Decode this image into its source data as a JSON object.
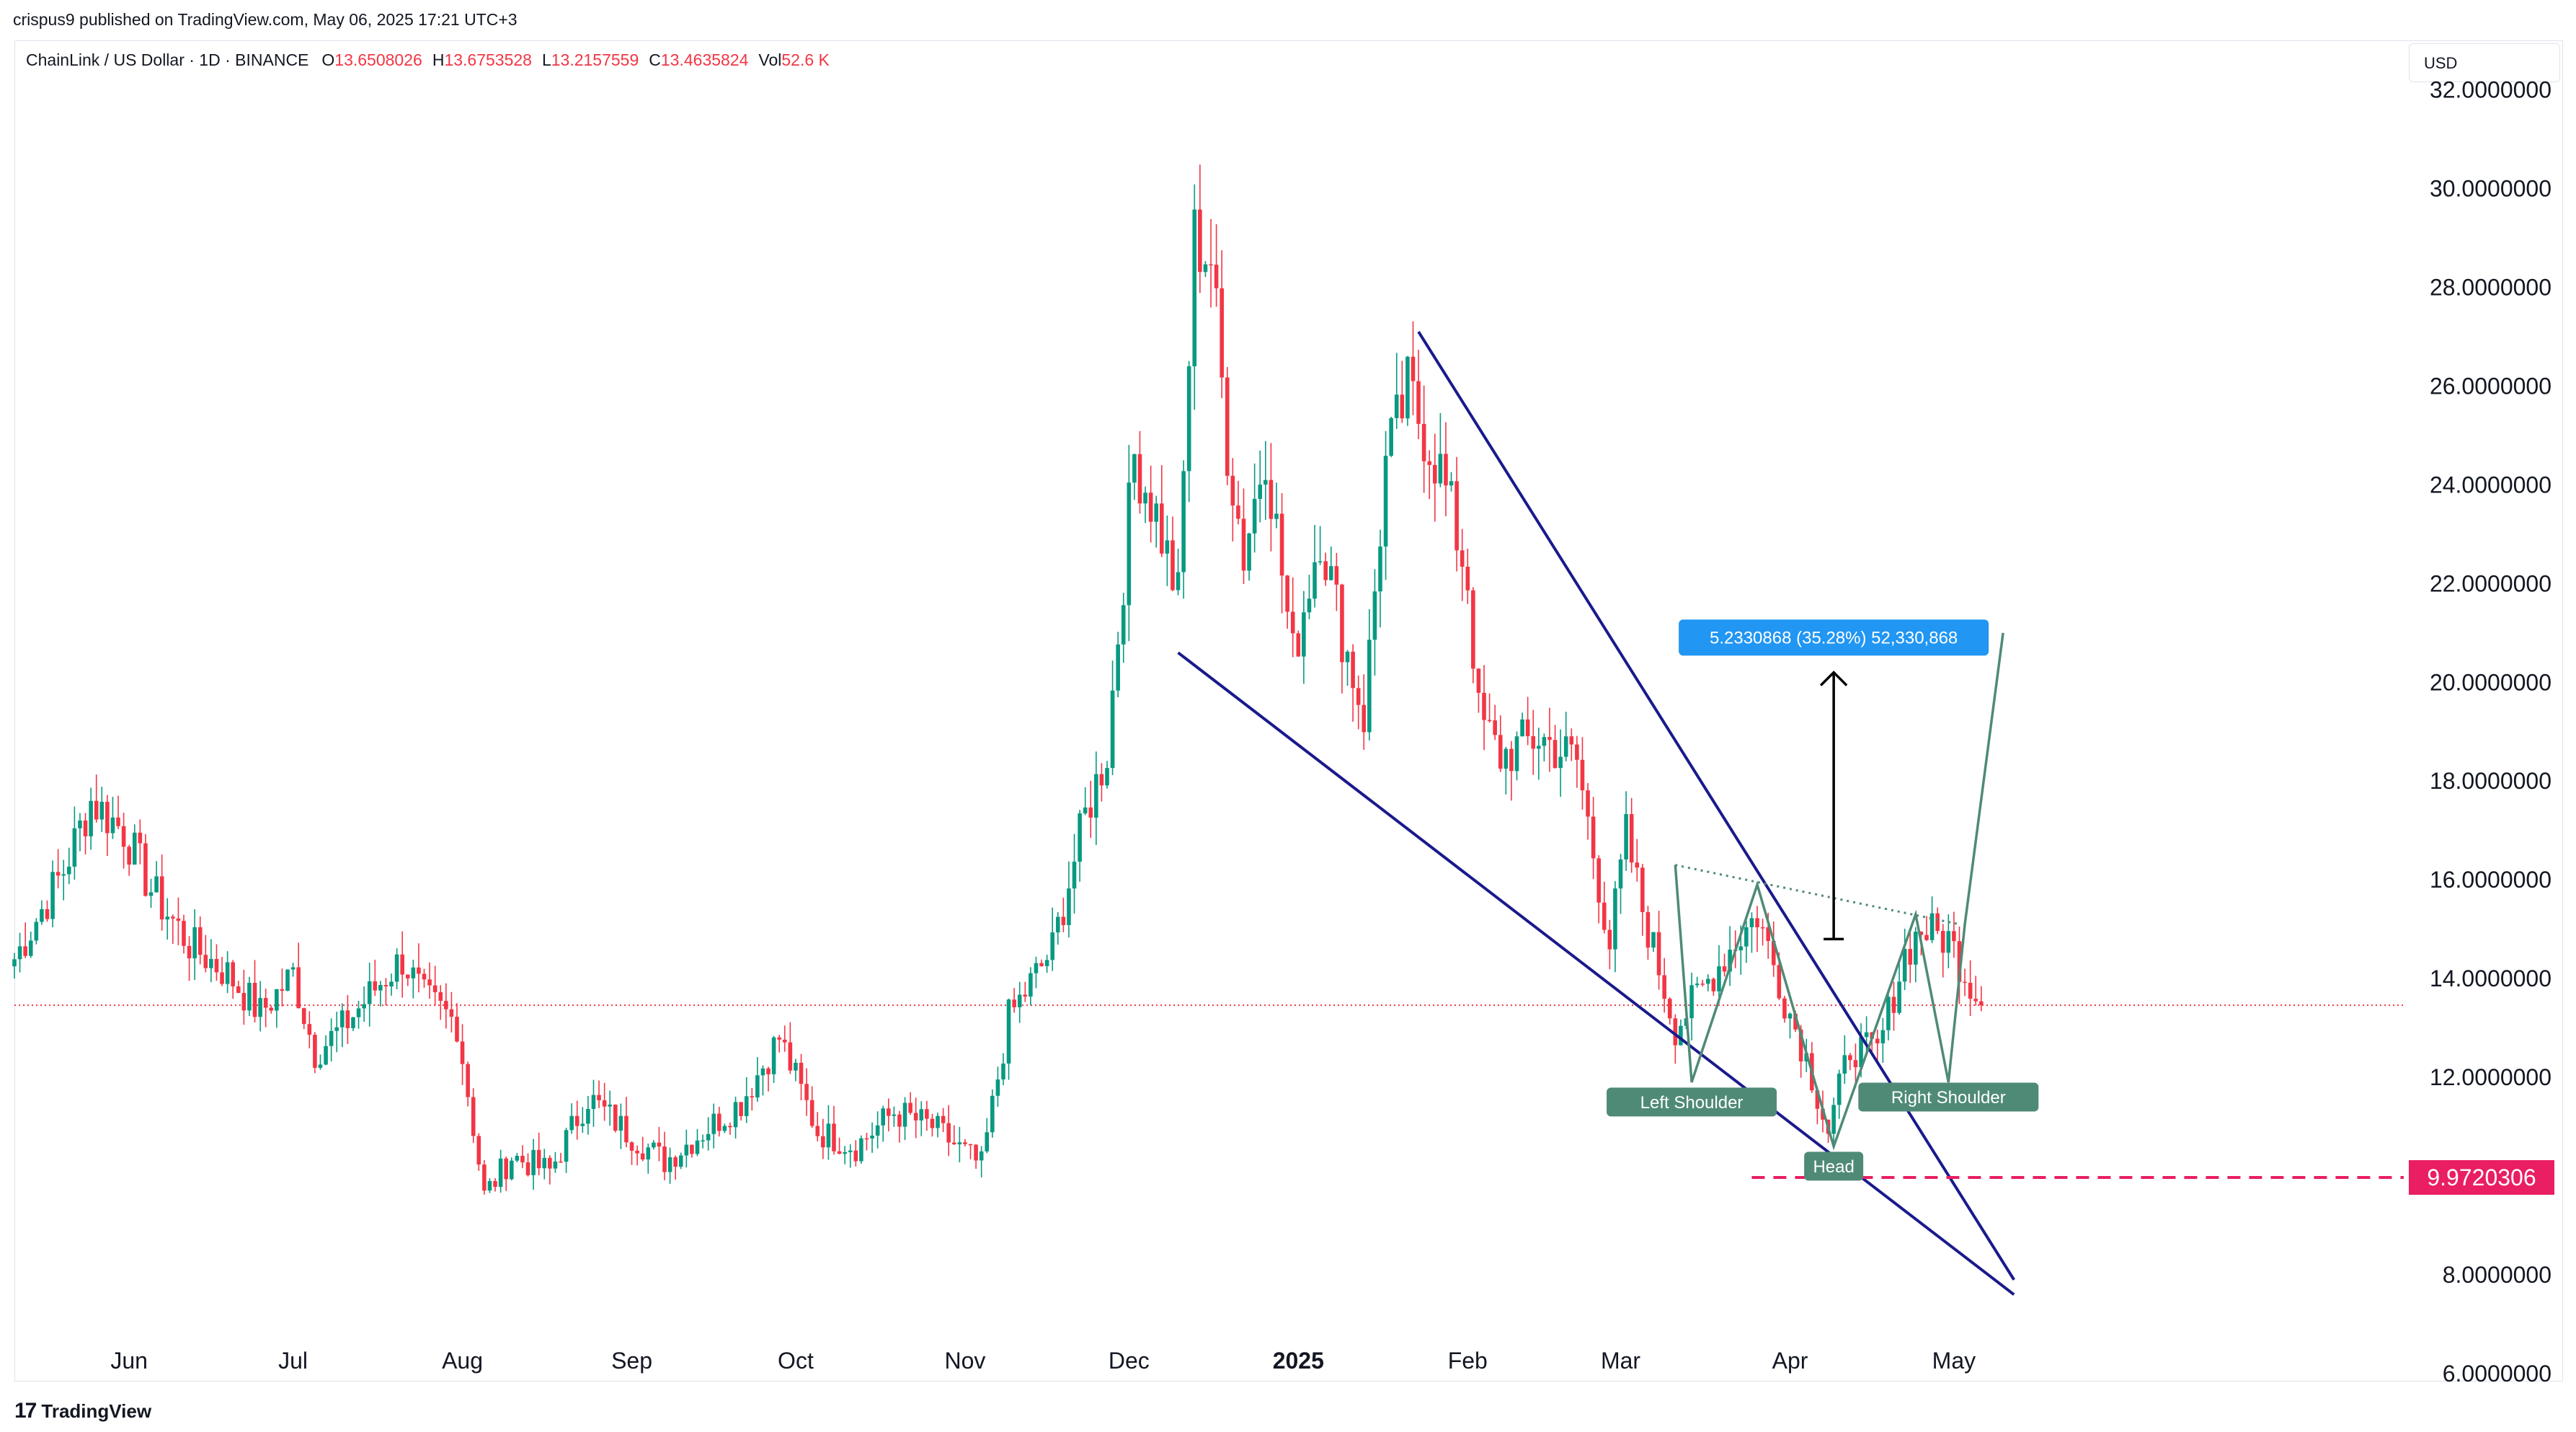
{
  "header": {
    "published_text": "crispus9 published on TradingView.com, May 06, 2025 17:21 UTC+3"
  },
  "legend": {
    "symbol": "ChainLink / US Dollar · 1D · BINANCE",
    "open_label": "O",
    "open": "13.6508026",
    "high_label": "H",
    "high": "13.6753528",
    "low_label": "L",
    "low": "13.2157559",
    "close_label": "C",
    "close": "13.4635824",
    "vol_label": "Vol",
    "vol": "52.6 K"
  },
  "currency_button": "USD",
  "brand": {
    "logo_glyph": "17",
    "name": "TradingView"
  },
  "colors": {
    "up": "#089981",
    "down": "#f23645",
    "wedge": "#1a1a8c",
    "pattern": "#4f8a77",
    "measure_box": "#2196f3",
    "target_line": "#e91e63"
  },
  "chart_data": {
    "type": "candlestick",
    "title": "",
    "xlabel": "",
    "ylabel": "",
    "ylim": [
      6,
      33
    ],
    "yticks": [
      6,
      8,
      12,
      14,
      16,
      18,
      20,
      22,
      24,
      26,
      28,
      30,
      32
    ],
    "ytick_labels": [
      "6.0000000",
      "8.0000000",
      "12.0000000",
      "14.0000000",
      "16.0000000",
      "18.0000000",
      "20.0000000",
      "22.0000000",
      "24.0000000",
      "26.0000000",
      "28.0000000",
      "30.0000000",
      "32.0000000"
    ],
    "xlim": [
      "2025-05-22",
      "2025-05-20"
    ],
    "x_axis_labels": [
      {
        "date": "2024-06-01",
        "label": "Jun",
        "bold": false
      },
      {
        "date": "2024-07-01",
        "label": "Jul",
        "bold": false
      },
      {
        "date": "2024-08-01",
        "label": "Aug",
        "bold": false
      },
      {
        "date": "2024-09-01",
        "label": "Sep",
        "bold": false
      },
      {
        "date": "2024-10-01",
        "label": "Oct",
        "bold": false
      },
      {
        "date": "2024-11-01",
        "label": "Nov",
        "bold": false
      },
      {
        "date": "2024-12-01",
        "label": "Dec",
        "bold": false
      },
      {
        "date": "2025-01-01",
        "label": "2025",
        "bold": true
      },
      {
        "date": "2025-02-01",
        "label": "Feb",
        "bold": false
      },
      {
        "date": "2025-03-01",
        "label": "Mar",
        "bold": false
      },
      {
        "date": "2025-04-01",
        "label": "Apr",
        "bold": false
      },
      {
        "date": "2025-05-01",
        "label": "May",
        "bold": false
      }
    ],
    "close_path_anchors": [
      {
        "date": "2024-05-11",
        "close": 14.4
      },
      {
        "date": "2024-05-20",
        "close": 16.2
      },
      {
        "date": "2024-05-25",
        "close": 17.6
      },
      {
        "date": "2024-05-31",
        "close": 17.0
      },
      {
        "date": "2024-06-05",
        "close": 15.8
      },
      {
        "date": "2024-06-12",
        "close": 14.7
      },
      {
        "date": "2024-06-19",
        "close": 14.1
      },
      {
        "date": "2024-06-25",
        "close": 13.3
      },
      {
        "date": "2024-07-01",
        "close": 14.1
      },
      {
        "date": "2024-07-05",
        "close": 12.5
      },
      {
        "date": "2024-07-10",
        "close": 13.0
      },
      {
        "date": "2024-07-16",
        "close": 13.8
      },
      {
        "date": "2024-07-21",
        "close": 14.4
      },
      {
        "date": "2024-07-25",
        "close": 13.6
      },
      {
        "date": "2024-07-31",
        "close": 13.1
      },
      {
        "date": "2024-08-05",
        "close": 9.6
      },
      {
        "date": "2024-08-10",
        "close": 10.4
      },
      {
        "date": "2024-08-17",
        "close": 10.1
      },
      {
        "date": "2024-08-24",
        "close": 11.6
      },
      {
        "date": "2024-08-31",
        "close": 10.9
      },
      {
        "date": "2024-09-07",
        "close": 10.3
      },
      {
        "date": "2024-09-14",
        "close": 10.9
      },
      {
        "date": "2024-09-21",
        "close": 11.5
      },
      {
        "date": "2024-09-28",
        "close": 12.8
      },
      {
        "date": "2024-10-05",
        "close": 10.9
      },
      {
        "date": "2024-10-12",
        "close": 10.6
      },
      {
        "date": "2024-10-19",
        "close": 11.3
      },
      {
        "date": "2024-10-26",
        "close": 11.0
      },
      {
        "date": "2024-11-04",
        "close": 10.2
      },
      {
        "date": "2024-11-09",
        "close": 13.2
      },
      {
        "date": "2024-11-13",
        "close": 13.9
      },
      {
        "date": "2024-11-17",
        "close": 14.6
      },
      {
        "date": "2024-11-23",
        "close": 17.3
      },
      {
        "date": "2024-11-27",
        "close": 18.6
      },
      {
        "date": "2024-12-02",
        "close": 24.6
      },
      {
        "date": "2024-12-06",
        "close": 23.4
      },
      {
        "date": "2024-12-10",
        "close": 21.7
      },
      {
        "date": "2024-12-13",
        "close": 29.0
      },
      {
        "date": "2024-12-16",
        "close": 28.6
      },
      {
        "date": "2024-12-19",
        "close": 24.8
      },
      {
        "date": "2024-12-22",
        "close": 22.6
      },
      {
        "date": "2024-12-26",
        "close": 24.8
      },
      {
        "date": "2024-12-31",
        "close": 20.5
      },
      {
        "date": "2025-01-05",
        "close": 23.1
      },
      {
        "date": "2025-01-09",
        "close": 21.0
      },
      {
        "date": "2025-01-13",
        "close": 19.3
      },
      {
        "date": "2025-01-17",
        "close": 24.4
      },
      {
        "date": "2025-01-21",
        "close": 25.9
      },
      {
        "date": "2025-01-27",
        "close": 24.3
      },
      {
        "date": "2025-02-01",
        "close": 22.1
      },
      {
        "date": "2025-02-03",
        "close": 19.3
      },
      {
        "date": "2025-02-07",
        "close": 18.5
      },
      {
        "date": "2025-02-14",
        "close": 18.9
      },
      {
        "date": "2025-02-21",
        "close": 18.4
      },
      {
        "date": "2025-02-27",
        "close": 14.7
      },
      {
        "date": "2025-03-02",
        "close": 16.9
      },
      {
        "date": "2025-03-05",
        "close": 15.4
      },
      {
        "date": "2025-03-11",
        "close": 13.0
      },
      {
        "date": "2025-03-16",
        "close": 13.8
      },
      {
        "date": "2025-03-21",
        "close": 14.6
      },
      {
        "date": "2025-03-26",
        "close": 15.3
      },
      {
        "date": "2025-03-31",
        "close": 13.6
      },
      {
        "date": "2025-04-04",
        "close": 12.4
      },
      {
        "date": "2025-04-08",
        "close": 10.9
      },
      {
        "date": "2025-04-12",
        "close": 12.6
      },
      {
        "date": "2025-04-17",
        "close": 12.5
      },
      {
        "date": "2025-04-22",
        "close": 14.5
      },
      {
        "date": "2025-04-25",
        "close": 15.0
      },
      {
        "date": "2025-04-30",
        "close": 14.8
      },
      {
        "date": "2025-05-06",
        "close": 13.46
      }
    ],
    "current_price": 13.46,
    "drawings": {
      "wedge_upper": [
        {
          "date": "2025-01-23",
          "price": 27.1
        },
        {
          "date": "2025-05-12",
          "price": 7.9
        }
      ],
      "wedge_lower": [
        {
          "date": "2024-12-10",
          "price": 20.6
        },
        {
          "date": "2025-05-12",
          "price": 7.6
        }
      ],
      "neckline": [
        {
          "date": "2025-03-11",
          "price": 16.3
        },
        {
          "date": "2025-05-02",
          "price": 15.1
        }
      ],
      "hs_path": [
        {
          "date": "2025-03-11",
          "price": 16.3
        },
        {
          "date": "2025-03-14",
          "price": 11.9
        },
        {
          "date": "2025-03-26",
          "price": 15.9
        },
        {
          "date": "2025-04-09",
          "price": 10.6
        },
        {
          "date": "2025-04-24",
          "price": 15.3
        },
        {
          "date": "2025-04-30",
          "price": 11.9
        },
        {
          "date": "2025-05-03",
          "price": 15.1
        },
        {
          "date": "2025-05-10",
          "price": 21.0
        }
      ],
      "measure_arrow": {
        "date": "2025-04-09",
        "from": 14.8,
        "to": 20.2
      },
      "target_line": {
        "from_date": "2025-03-25",
        "to_date": "2025-05-31",
        "price": 9.972
      }
    },
    "annotations": {
      "measure_label": "5.2330868 (35.28%) 52,330,868",
      "left_shoulder": "Left Shoulder",
      "head": "Head",
      "right_shoulder": "Right Shoulder",
      "price_tag": "9.9720306"
    }
  }
}
